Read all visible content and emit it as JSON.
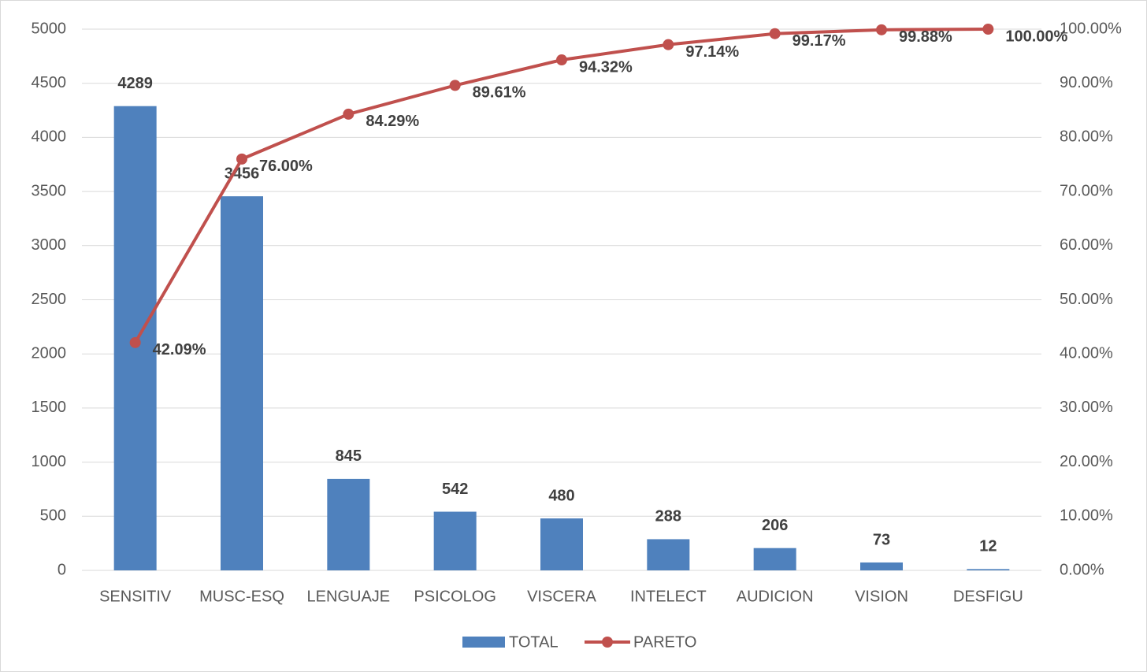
{
  "chart_data": {
    "type": "bar",
    "categories": [
      "SENSITIV",
      "MUSC-ESQ",
      "LENGUAJE",
      "PSICOLOG",
      "VISCERA",
      "INTELECT",
      "AUDICION",
      "VISION",
      "DESFIGU"
    ],
    "series": [
      {
        "name": "TOTAL",
        "type": "bar",
        "color": "#4f81bd",
        "values": [
          4289,
          3456,
          845,
          542,
          480,
          288,
          206,
          73,
          12
        ]
      },
      {
        "name": "PARETO",
        "type": "line",
        "axis": "y2",
        "color": "#c0504d",
        "values": [
          42.09,
          76.0,
          84.29,
          89.61,
          94.32,
          97.14,
          99.17,
          99.88,
          100.0
        ],
        "value_labels": [
          "42.09%",
          "76.00%",
          "84.29%",
          "89.61%",
          "94.32%",
          "97.14%",
          "99.17%",
          "99.88%",
          "100.00%"
        ]
      }
    ],
    "ylim": [
      0,
      5000
    ],
    "yticks": [
      0,
      500,
      1000,
      1500,
      2000,
      2500,
      3000,
      3500,
      4000,
      4500,
      5000
    ],
    "y2lim": [
      0,
      100
    ],
    "y2ticks": [
      {
        "value": 0,
        "label": "0.00%"
      },
      {
        "value": 10,
        "label": "10.00%"
      },
      {
        "value": 20,
        "label": "20.00%"
      },
      {
        "value": 30,
        "label": "30.00%"
      },
      {
        "value": 40,
        "label": "40.00%"
      },
      {
        "value": 50,
        "label": "50.00%"
      },
      {
        "value": 60,
        "label": "60.00%"
      },
      {
        "value": 70,
        "label": "70.00%"
      },
      {
        "value": 80,
        "label": "80.00%"
      },
      {
        "value": 90,
        "label": "90.00%"
      },
      {
        "value": 100,
        "label": "100.00%"
      }
    ],
    "grid": true,
    "legend": "bottom"
  }
}
